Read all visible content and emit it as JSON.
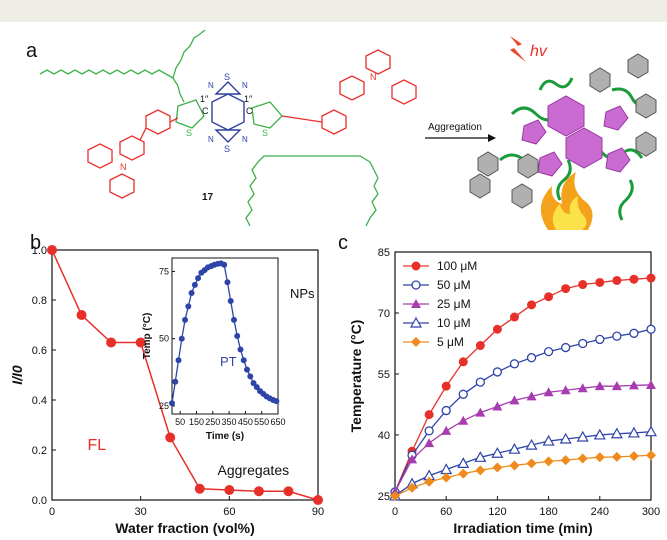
{
  "panel_a": {
    "letter": "a",
    "compound_label": "17",
    "arrow_label": "Aggregation",
    "hv_label": "hv",
    "atom_labels": {
      "S": "S",
      "N": "N",
      "C": "C",
      "one_prime": "1″"
    }
  },
  "chart_data": [
    {
      "panel": "b",
      "type": "line",
      "x": [
        0,
        10,
        20,
        30,
        40,
        50,
        60,
        70,
        80,
        90
      ],
      "series": [
        {
          "values": [
            1.0,
            0.74,
            0.63,
            0.63,
            0.25,
            0.045,
            0.04,
            0.035,
            0.035,
            0.0
          ]
        }
      ],
      "xlabel": "Water fraction (vol%)",
      "ylabel": "I/I0",
      "xlim": [
        0,
        90
      ],
      "ylim": [
        0,
        1.0
      ],
      "xticks": [
        "0",
        "30",
        "60",
        "90"
      ],
      "yticks": [
        "0.0",
        "0.2",
        "0.4",
        "0.6",
        "0.8",
        "1.0"
      ],
      "annotations": [
        "FL",
        "Aggregates"
      ],
      "color": "#e8302a",
      "inset": {
        "type": "line",
        "x": [
          0,
          20,
          40,
          60,
          80,
          100,
          120,
          140,
          160,
          180,
          200,
          220,
          240,
          260,
          280,
          300,
          320,
          340,
          360,
          380,
          400,
          420,
          440,
          460,
          480,
          500,
          520,
          540,
          560,
          580,
          600,
          620,
          640
        ],
        "values": [
          26,
          34,
          42,
          50,
          57,
          62,
          67,
          70,
          72.5,
          74.5,
          75.5,
          76.5,
          77,
          77.5,
          77.8,
          78,
          77.5,
          71,
          64,
          57,
          51,
          46,
          42,
          38.5,
          36,
          33.5,
          32,
          30.5,
          29.5,
          28.5,
          27.8,
          27.2,
          26.8
        ],
        "xlabel": "Time (s)",
        "ylabel": "Temp (°C)",
        "xlim": [
          0,
          650
        ],
        "ylim": [
          22,
          80
        ],
        "xticks": [
          50,
          150,
          250,
          350,
          450,
          550,
          650
        ],
        "yticks": [
          25,
          50,
          75
        ],
        "annotations": [
          "NPs",
          "PT"
        ],
        "color": "#2f44a8"
      }
    },
    {
      "panel": "c",
      "type": "line",
      "x": [
        0,
        20,
        40,
        60,
        80,
        100,
        120,
        140,
        160,
        180,
        200,
        220,
        240,
        260,
        280,
        300
      ],
      "series": [
        {
          "name": "100 μM",
          "color": "#e8302a",
          "marker": "filled-circle",
          "values": [
            26,
            36,
            45,
            52,
            58,
            62,
            66,
            69,
            72,
            74,
            76,
            77,
            77.5,
            78,
            78.3,
            78.6
          ]
        },
        {
          "name": "50 μM",
          "color": "#2f44a8",
          "marker": "open-circle",
          "values": [
            26,
            35,
            41,
            46,
            50,
            53,
            55.5,
            57.5,
            59,
            60.5,
            61.5,
            62.5,
            63.5,
            64.3,
            65,
            66
          ]
        },
        {
          "name": "25 μM",
          "color": "#a63caf",
          "marker": "filled-triangle",
          "values": [
            26,
            34,
            38,
            41,
            43.5,
            45.5,
            47,
            48.5,
            49.5,
            50.5,
            51,
            51.5,
            52,
            52,
            52.2,
            52.3
          ]
        },
        {
          "name": "10 μM",
          "color": "#2f44a8",
          "marker": "open-triangle",
          "values": [
            25,
            28,
            30,
            31.5,
            33,
            34.5,
            35.5,
            36.5,
            37.5,
            38.5,
            39,
            39.5,
            40,
            40.3,
            40.5,
            40.8
          ]
        },
        {
          "name": "5 μM",
          "color": "#f08a1c",
          "marker": "filled-diamond",
          "values": [
            25,
            27,
            28.5,
            29.5,
            30.5,
            31.3,
            32,
            32.5,
            33,
            33.5,
            33.8,
            34.2,
            34.5,
            34.6,
            34.8,
            35
          ]
        }
      ],
      "xlabel": "Irradiation time (min)",
      "ylabel": "Temperature (°C)",
      "xlim": [
        0,
        300
      ],
      "ylim": [
        24,
        85
      ],
      "xticks": [
        0,
        60,
        120,
        180,
        240,
        300
      ],
      "yticks": [
        25,
        40,
        55,
        70,
        85
      ],
      "legend": "top-left"
    }
  ]
}
